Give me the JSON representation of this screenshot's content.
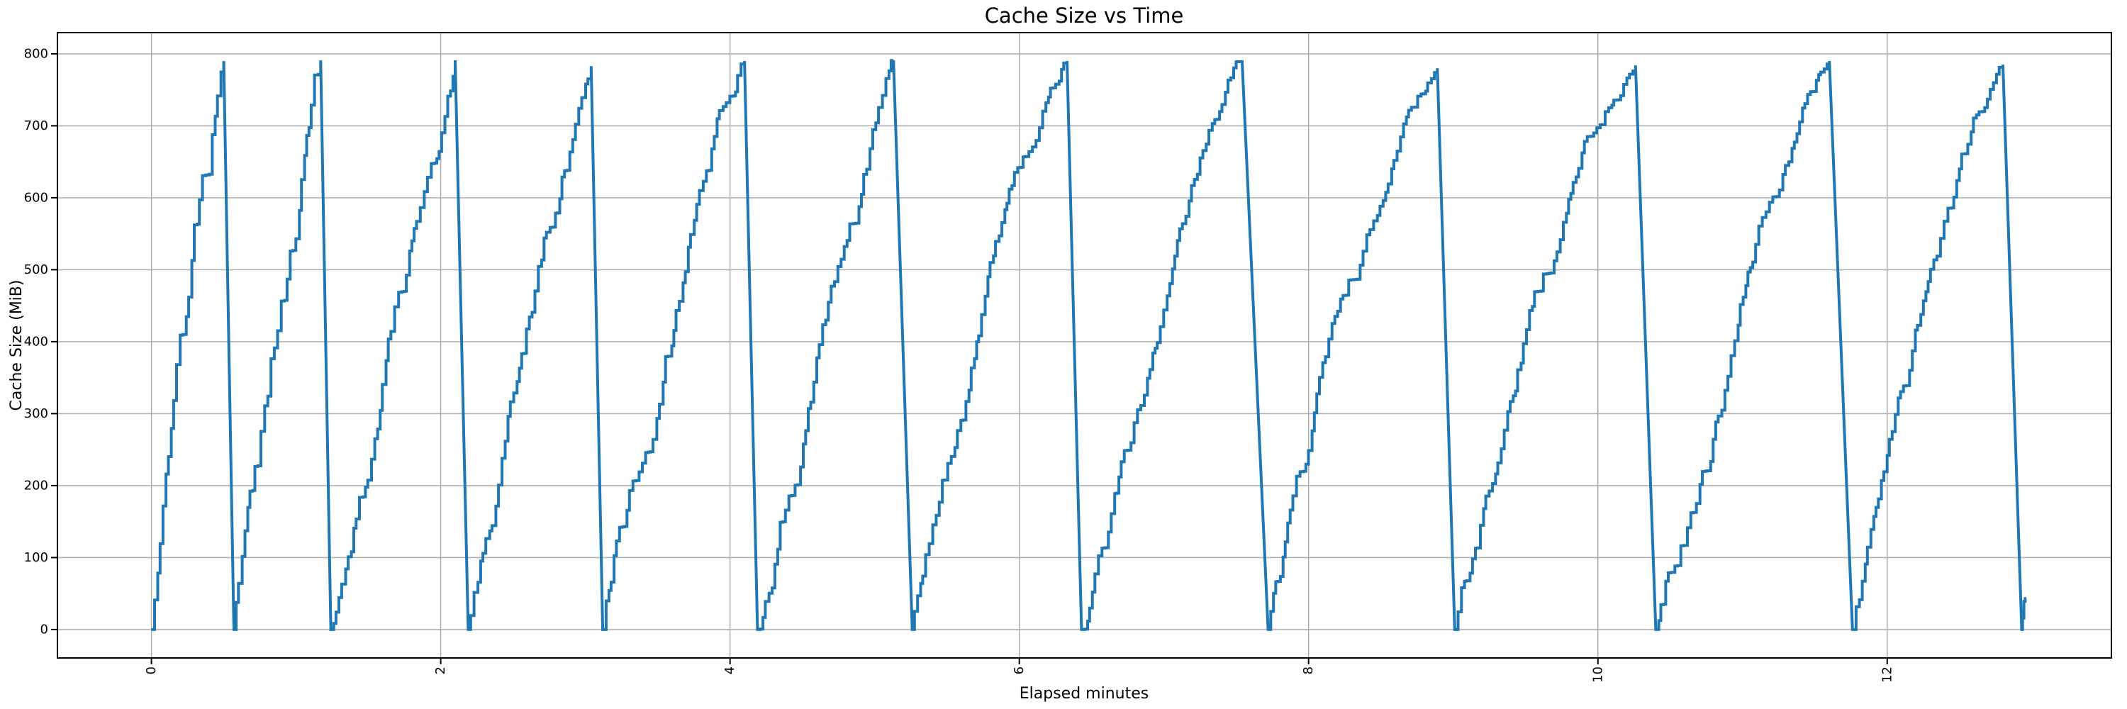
{
  "figure": {
    "title": "Cache Size vs Time",
    "xlabel": "Elapsed minutes",
    "ylabel": "Cache Size (MiB)"
  },
  "chart_data": {
    "type": "line",
    "title": "Cache Size vs Time",
    "xlabel": "Elapsed minutes",
    "ylabel": "Cache Size (MiB)",
    "x_ticks": [
      0,
      2,
      4,
      6,
      8,
      10,
      12
    ],
    "x_tick_labels": [
      "0",
      "2",
      "4",
      "6",
      "8",
      "10",
      "12"
    ],
    "x_tick_rotation": 90,
    "y_ticks": [
      0,
      100,
      200,
      300,
      400,
      500,
      600,
      700,
      800
    ],
    "y_tick_labels": [
      "0",
      "100",
      "200",
      "300",
      "400",
      "500",
      "600",
      "700",
      "800"
    ],
    "xlim": [
      -0.65,
      13.55
    ],
    "ylim": [
      -39.5,
      829.5
    ],
    "grid": true,
    "legend": null,
    "line_color": "#1f77b4",
    "grid_color": "#b0b0b0",
    "spine_color": "#000000",
    "pattern": "sawtooth: cache fills in irregular staircase steps up to ~790 MiB, then drops rapidly to 0 and refills; 12 cycles over ~13 minutes, final partial refill to ~43 MiB",
    "cycles": [
      {
        "start": 0.0,
        "peak_time": 0.5,
        "peak_value": 790,
        "drop_end": 0.57
      },
      {
        "start": 0.57,
        "peak_time": 1.17,
        "peak_value": 791,
        "drop_end": 1.24
      },
      {
        "start": 1.24,
        "peak_time": 2.1,
        "peak_value": 791,
        "drop_end": 2.19
      },
      {
        "start": 2.19,
        "peak_time": 3.04,
        "peak_value": 783,
        "drop_end": 3.12
      },
      {
        "start": 3.12,
        "peak_time": 4.1,
        "peak_value": 790,
        "drop_end": 4.19
      },
      {
        "start": 4.19,
        "peak_time": 5.13,
        "peak_value": 791,
        "drop_end": 5.26
      },
      {
        "start": 5.26,
        "peak_time": 6.33,
        "peak_value": 790,
        "drop_end": 6.43
      },
      {
        "start": 6.43,
        "peak_time": 7.54,
        "peak_value": 791,
        "drop_end": 7.72
      },
      {
        "start": 7.72,
        "peak_time": 8.89,
        "peak_value": 780,
        "drop_end": 9.01
      },
      {
        "start": 9.01,
        "peak_time": 10.26,
        "peak_value": 784,
        "drop_end": 10.4
      },
      {
        "start": 10.4,
        "peak_time": 11.6,
        "peak_value": 790,
        "drop_end": 11.76
      },
      {
        "start": 11.76,
        "peak_time": 12.8,
        "peak_value": 785,
        "drop_end": 12.93
      }
    ],
    "tail_points": [
      [
        12.93,
        0
      ],
      [
        12.936,
        16
      ],
      [
        12.945,
        39
      ],
      [
        12.954,
        43
      ],
      [
        12.962,
        43
      ]
    ]
  }
}
